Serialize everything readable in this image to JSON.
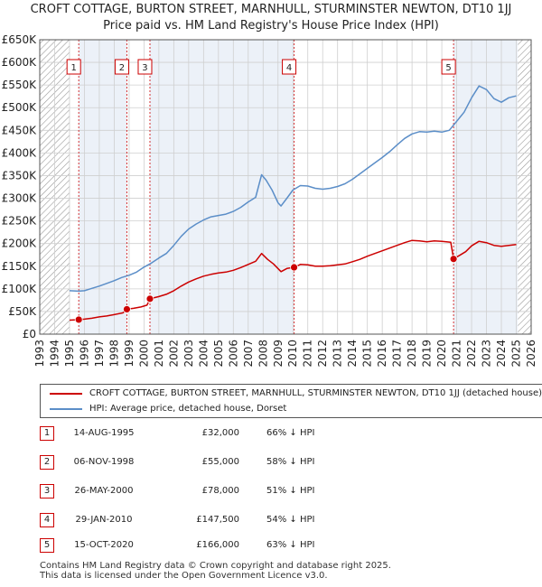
{
  "title": {
    "line1": "CROFT COTTAGE, BURTON STREET, MARNHULL, STURMINSTER NEWTON, DT10 1JJ",
    "line2": "Price paid vs. HM Land Registry's House Price Index (HPI)"
  },
  "colors": {
    "price_line": "#cc0000",
    "hpi_line": "#5b8ec8",
    "band": "#dde6f3",
    "grid": "#cfcfcf",
    "hatch": "#999999"
  },
  "legend": {
    "price_label": "CROFT COTTAGE, BURTON STREET, MARNHULL, STURMINSTER NEWTON, DT10 1JJ (detached house)",
    "hpi_label": "HPI: Average price, detached house, Dorset"
  },
  "sales": [
    {
      "num": "1",
      "date": "14-AUG-1995",
      "price": "£32,000",
      "hpi": "66% ↓ HPI"
    },
    {
      "num": "2",
      "date": "06-NOV-1998",
      "price": "£55,000",
      "hpi": "58% ↓ HPI"
    },
    {
      "num": "3",
      "date": "26-MAY-2000",
      "price": "£78,000",
      "hpi": "51% ↓ HPI"
    },
    {
      "num": "4",
      "date": "29-JAN-2010",
      "price": "£147,500",
      "hpi": "54% ↓ HPI"
    },
    {
      "num": "5",
      "date": "15-OCT-2020",
      "price": "£166,000",
      "hpi": "63% ↓ HPI"
    }
  ],
  "footer": {
    "line1": "Contains HM Land Registry data © Crown copyright and database right 2025.",
    "line2": "This data is licensed under the Open Government Licence v3.0."
  },
  "chart_data": {
    "type": "line",
    "title": "CROFT COTTAGE, BURTON STREET, MARNHULL, STURMINSTER NEWTON, DT10 1JJ",
    "subtitle": "Price paid vs. HM Land Registry's House Price Index (HPI)",
    "xlim": [
      1993,
      2026
    ],
    "ylim": [
      0,
      650000
    ],
    "x_ticks": [
      1993,
      1994,
      1995,
      1996,
      1997,
      1998,
      1999,
      2000,
      2001,
      2002,
      2003,
      2004,
      2005,
      2006,
      2007,
      2008,
      2009,
      2010,
      2011,
      2012,
      2013,
      2014,
      2015,
      2016,
      2017,
      2018,
      2019,
      2020,
      2021,
      2022,
      2023,
      2024,
      2025,
      2026
    ],
    "y_ticks": [
      {
        "value": 0,
        "label": "£0"
      },
      {
        "value": 50000,
        "label": "£50K"
      },
      {
        "value": 100000,
        "label": "£100K"
      },
      {
        "value": 150000,
        "label": "£150K"
      },
      {
        "value": 200000,
        "label": "£200K"
      },
      {
        "value": 250000,
        "label": "£250K"
      },
      {
        "value": 300000,
        "label": "£300K"
      },
      {
        "value": 350000,
        "label": "£350K"
      },
      {
        "value": 400000,
        "label": "£400K"
      },
      {
        "value": 450000,
        "label": "£450K"
      },
      {
        "value": 500000,
        "label": "£500K"
      },
      {
        "value": 550000,
        "label": "£550K"
      },
      {
        "value": 600000,
        "label": "£600K"
      },
      {
        "value": 650000,
        "label": "£650K"
      }
    ],
    "grid": true,
    "data_start_year": 1995.0,
    "hatched_after": 2025.1,
    "series": [
      {
        "name": "HPI: Average price, detached house, Dorset",
        "points": [
          [
            1995.0,
            96000
          ],
          [
            1995.6,
            95000
          ],
          [
            1996.0,
            96000
          ],
          [
            1996.5,
            101000
          ],
          [
            1997.0,
            106000
          ],
          [
            1997.5,
            112000
          ],
          [
            1998.0,
            118000
          ],
          [
            1998.5,
            125000
          ],
          [
            1999.0,
            130000
          ],
          [
            1999.5,
            137000
          ],
          [
            2000.0,
            148000
          ],
          [
            2000.5,
            157000
          ],
          [
            2001.0,
            168000
          ],
          [
            2001.5,
            178000
          ],
          [
            2002.0,
            196000
          ],
          [
            2002.5,
            216000
          ],
          [
            2003.0,
            232000
          ],
          [
            2003.5,
            243000
          ],
          [
            2004.0,
            252000
          ],
          [
            2004.5,
            259000
          ],
          [
            2005.0,
            262000
          ],
          [
            2005.5,
            265000
          ],
          [
            2006.0,
            271000
          ],
          [
            2006.5,
            280000
          ],
          [
            2007.0,
            292000
          ],
          [
            2007.5,
            302000
          ],
          [
            2007.9,
            352000
          ],
          [
            2008.2,
            340000
          ],
          [
            2008.6,
            318000
          ],
          [
            2009.0,
            290000
          ],
          [
            2009.2,
            283000
          ],
          [
            2009.6,
            300000
          ],
          [
            2010.0,
            318000
          ],
          [
            2010.5,
            328000
          ],
          [
            2011.0,
            327000
          ],
          [
            2011.5,
            322000
          ],
          [
            2012.0,
            320000
          ],
          [
            2012.5,
            322000
          ],
          [
            2013.0,
            326000
          ],
          [
            2013.5,
            332000
          ],
          [
            2014.0,
            342000
          ],
          [
            2014.5,
            354000
          ],
          [
            2015.0,
            366000
          ],
          [
            2015.5,
            378000
          ],
          [
            2016.0,
            390000
          ],
          [
            2016.5,
            403000
          ],
          [
            2017.0,
            418000
          ],
          [
            2017.5,
            432000
          ],
          [
            2018.0,
            442000
          ],
          [
            2018.5,
            447000
          ],
          [
            2019.0,
            446000
          ],
          [
            2019.5,
            448000
          ],
          [
            2020.0,
            446000
          ],
          [
            2020.5,
            450000
          ],
          [
            2021.0,
            470000
          ],
          [
            2021.5,
            490000
          ],
          [
            2022.0,
            522000
          ],
          [
            2022.5,
            548000
          ],
          [
            2023.0,
            540000
          ],
          [
            2023.5,
            520000
          ],
          [
            2024.0,
            512000
          ],
          [
            2024.5,
            522000
          ],
          [
            2025.0,
            526000
          ]
        ]
      },
      {
        "name": "CROFT COTTAGE, BURTON STREET, MARNHULL, STURMINSTER NEWTON, DT10 1JJ (detached house)",
        "points": [
          [
            1995.0,
            31000
          ],
          [
            1995.62,
            32000
          ],
          [
            1996.0,
            33000
          ],
          [
            1996.5,
            35000
          ],
          [
            1997.0,
            38000
          ],
          [
            1997.5,
            40000
          ],
          [
            1998.0,
            43000
          ],
          [
            1998.6,
            47000
          ],
          [
            1998.85,
            55000
          ],
          [
            1999.3,
            57000
          ],
          [
            1999.8,
            60000
          ],
          [
            2000.2,
            64000
          ],
          [
            2000.4,
            78000
          ],
          [
            2001.0,
            83000
          ],
          [
            2001.5,
            88000
          ],
          [
            2002.0,
            96000
          ],
          [
            2002.5,
            106000
          ],
          [
            2003.0,
            115000
          ],
          [
            2003.5,
            122000
          ],
          [
            2004.0,
            128000
          ],
          [
            2004.5,
            132000
          ],
          [
            2005.0,
            135000
          ],
          [
            2005.5,
            137000
          ],
          [
            2006.0,
            141000
          ],
          [
            2006.5,
            147000
          ],
          [
            2007.0,
            154000
          ],
          [
            2007.5,
            161000
          ],
          [
            2007.9,
            178000
          ],
          [
            2008.3,
            165000
          ],
          [
            2008.7,
            155000
          ],
          [
            2009.2,
            138000
          ],
          [
            2009.6,
            145000
          ],
          [
            2010.08,
            147500
          ],
          [
            2010.5,
            154000
          ],
          [
            2011.0,
            153000
          ],
          [
            2011.5,
            150000
          ],
          [
            2012.0,
            150000
          ],
          [
            2012.5,
            151000
          ],
          [
            2013.0,
            153000
          ],
          [
            2013.5,
            155000
          ],
          [
            2014.0,
            160000
          ],
          [
            2014.5,
            165000
          ],
          [
            2015.0,
            172000
          ],
          [
            2015.5,
            178000
          ],
          [
            2016.0,
            184000
          ],
          [
            2016.5,
            190000
          ],
          [
            2017.0,
            196000
          ],
          [
            2017.5,
            202000
          ],
          [
            2018.0,
            207000
          ],
          [
            2018.5,
            206000
          ],
          [
            2019.0,
            204000
          ],
          [
            2019.5,
            206000
          ],
          [
            2020.0,
            205000
          ],
          [
            2020.6,
            203000
          ],
          [
            2020.79,
            166000
          ],
          [
            2021.2,
            174000
          ],
          [
            2021.6,
            182000
          ],
          [
            2022.0,
            195000
          ],
          [
            2022.5,
            205000
          ],
          [
            2023.0,
            202000
          ],
          [
            2023.5,
            196000
          ],
          [
            2024.0,
            194000
          ],
          [
            2024.5,
            196000
          ],
          [
            2025.0,
            198000
          ]
        ]
      }
    ],
    "markers": [
      {
        "label": "1",
        "x": 1995.62,
        "y": 32000
      },
      {
        "label": "2",
        "x": 1998.85,
        "y": 55000
      },
      {
        "label": "3",
        "x": 2000.4,
        "y": 78000
      },
      {
        "label": "4",
        "x": 2010.08,
        "y": 147500
      },
      {
        "label": "5",
        "x": 2020.79,
        "y": 166000
      }
    ]
  }
}
